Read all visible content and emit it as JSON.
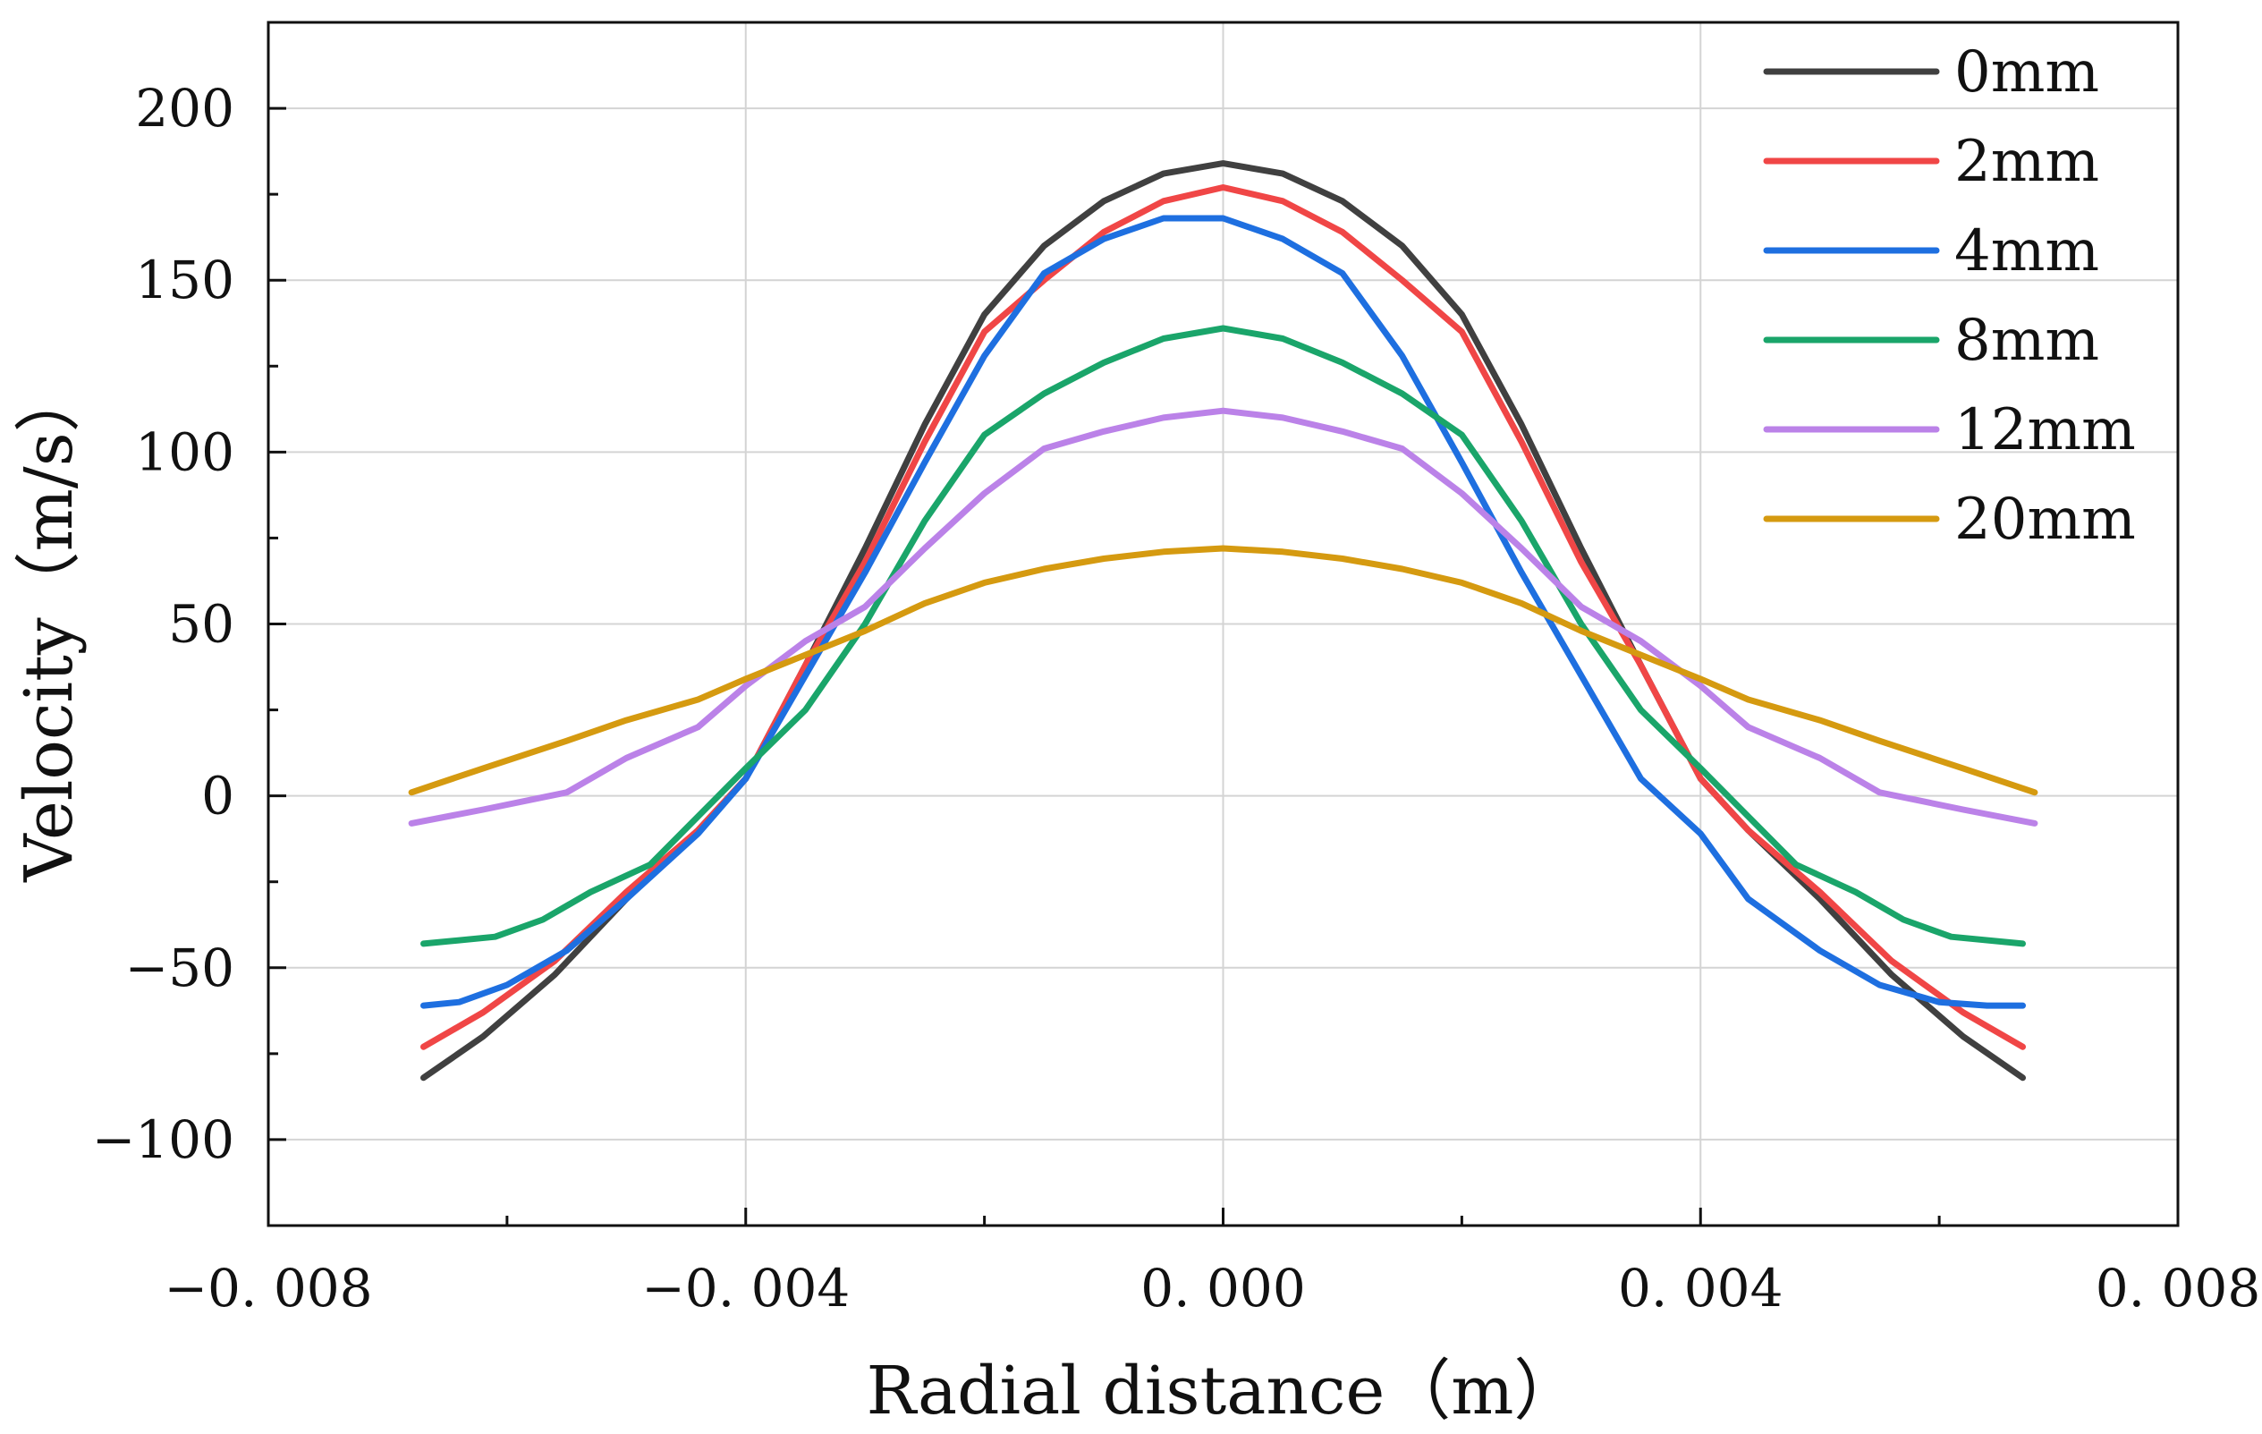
{
  "chart_data": {
    "type": "line",
    "title": "",
    "xlabel": "Radial distance（m）",
    "ylabel": "Velocity（m/s）",
    "xlim": [
      -0.008,
      0.008
    ],
    "ylim": [
      -125,
      225
    ],
    "xticks": [
      -0.008,
      -0.004,
      0.0,
      0.004,
      0.008
    ],
    "xtick_labels": [
      "−0. 008",
      "−0. 004",
      "0. 000",
      "0. 004",
      "0. 008"
    ],
    "yticks": [
      -100,
      -50,
      0,
      50,
      100,
      150,
      200
    ],
    "ytick_labels": [
      "−100",
      "−50",
      "0",
      "50",
      "100",
      "150",
      "200"
    ],
    "grid": true,
    "legend_position": "top-right",
    "series": [
      {
        "name": "0mm",
        "color": "#404040",
        "x": [
          -0.0067,
          -0.0062,
          -0.0056,
          -0.005,
          -0.0044,
          -0.004,
          -0.0035,
          -0.003,
          -0.0025,
          -0.002,
          -0.0015,
          -0.001,
          -0.0005,
          0,
          0.0005,
          0.001,
          0.0015,
          0.002,
          0.0025,
          0.003,
          0.0035,
          0.004,
          0.0044,
          0.005,
          0.0056,
          0.0062,
          0.0067
        ],
        "values": [
          -82,
          -70,
          -52,
          -30,
          -10,
          5,
          38,
          72,
          108,
          140,
          160,
          173,
          181,
          184,
          181,
          173,
          160,
          140,
          108,
          72,
          38,
          5,
          -10,
          -30,
          -52,
          -70,
          -82
        ]
      },
      {
        "name": "2mm",
        "color": "#f04646",
        "x": [
          -0.0067,
          -0.0062,
          -0.0056,
          -0.005,
          -0.0044,
          -0.004,
          -0.0035,
          -0.003,
          -0.0025,
          -0.002,
          -0.0015,
          -0.001,
          -0.0005,
          0,
          0.0005,
          0.001,
          0.0015,
          0.002,
          0.0025,
          0.003,
          0.0035,
          0.004,
          0.0044,
          0.005,
          0.0056,
          0.0062,
          0.0067
        ],
        "values": [
          -73,
          -63,
          -48,
          -28,
          -10,
          5,
          38,
          68,
          103,
          135,
          150,
          164,
          173,
          177,
          173,
          164,
          150,
          135,
          103,
          68,
          38,
          5,
          -10,
          -28,
          -48,
          -63,
          -73
        ]
      },
      {
        "name": "4mm",
        "color": "#1e6fe0",
        "x": [
          -0.0067,
          -0.0064,
          -0.006,
          -0.0055,
          -0.005,
          -0.0044,
          -0.004,
          -0.0035,
          -0.003,
          -0.0025,
          -0.002,
          -0.0015,
          -0.001,
          -0.0005,
          0,
          0.0005,
          0.001,
          0.0015,
          0.002,
          0.0025,
          0.003,
          0.0035,
          0.004,
          0.0044,
          0.005,
          0.0055,
          0.006,
          0.0064,
          0.0067
        ],
        "values": [
          -61,
          -60,
          -55,
          -45,
          -30,
          -11,
          5,
          35,
          65,
          97,
          128,
          152,
          162,
          168,
          168,
          162,
          152,
          128,
          97,
          65,
          35,
          5,
          -11,
          -30,
          -45,
          -55,
          -60,
          -61,
          -61
        ]
      },
      {
        "name": "8mm",
        "color": "#1aa56a",
        "x": [
          -0.0067,
          -0.0061,
          -0.0057,
          -0.0053,
          -0.0048,
          -0.0044,
          -0.004,
          -0.0035,
          -0.003,
          -0.0025,
          -0.002,
          -0.0015,
          -0.001,
          -0.0005,
          0,
          0.0005,
          0.001,
          0.0015,
          0.002,
          0.0025,
          0.003,
          0.0035,
          0.004,
          0.0044,
          0.0048,
          0.0053,
          0.0057,
          0.0061,
          0.0067
        ],
        "values": [
          -43,
          -41,
          -36,
          -28,
          -20,
          -6,
          8,
          25,
          50,
          80,
          105,
          117,
          126,
          133,
          136,
          133,
          126,
          117,
          105,
          80,
          50,
          25,
          8,
          -6,
          -20,
          -28,
          -36,
          -41,
          -43
        ]
      },
      {
        "name": "12mm",
        "color": "#bb82e8",
        "x": [
          -0.0068,
          -0.0062,
          -0.0055,
          -0.005,
          -0.0044,
          -0.004,
          -0.0035,
          -0.003,
          -0.0025,
          -0.002,
          -0.0015,
          -0.001,
          -0.0005,
          0,
          0.0005,
          0.001,
          0.0015,
          0.002,
          0.0025,
          0.003,
          0.0035,
          0.004,
          0.0044,
          0.005,
          0.0055,
          0.0062,
          0.0068
        ],
        "values": [
          -8,
          -4,
          1,
          11,
          20,
          32,
          45,
          55,
          72,
          88,
          101,
          106,
          110,
          112,
          110,
          106,
          101,
          88,
          72,
          55,
          45,
          32,
          20,
          11,
          1,
          -4,
          -8
        ]
      },
      {
        "name": "20mm",
        "color": "#d59a10",
        "x": [
          -0.0068,
          -0.0062,
          -0.0055,
          -0.005,
          -0.0044,
          -0.004,
          -0.0035,
          -0.003,
          -0.0025,
          -0.002,
          -0.0015,
          -0.001,
          -0.0005,
          0,
          0.0005,
          0.001,
          0.0015,
          0.002,
          0.0025,
          0.003,
          0.0035,
          0.004,
          0.0044,
          0.005,
          0.0055,
          0.0062,
          0.0068
        ],
        "values": [
          1,
          8,
          16,
          22,
          28,
          34,
          41,
          48,
          56,
          62,
          66,
          69,
          71,
          72,
          71,
          69,
          66,
          62,
          56,
          48,
          41,
          34,
          28,
          22,
          16,
          8,
          1
        ]
      }
    ]
  }
}
